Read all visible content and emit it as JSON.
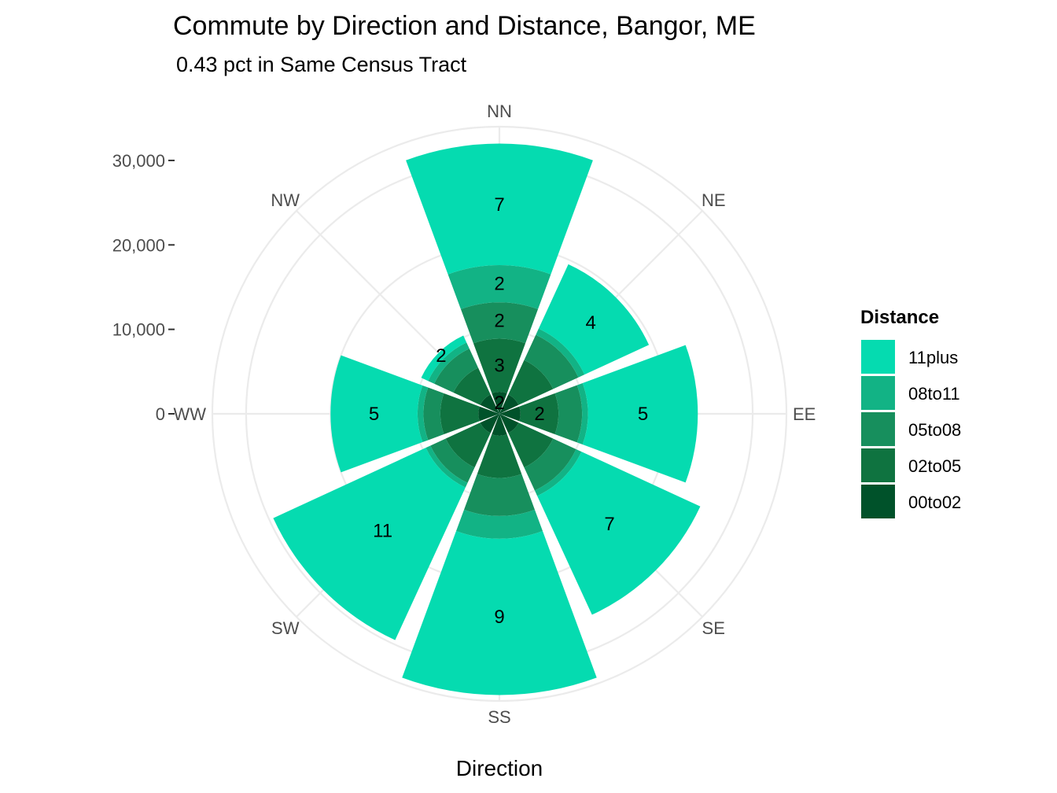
{
  "chart_data": {
    "type": "bar",
    "subtype": "polar-stacked-bar",
    "title": "Commute by Direction and Distance, Bangor, ME",
    "subtitle": "0.43 pct in Same Census Tract",
    "xlabel": "Direction",
    "categories": [
      "NN",
      "NE",
      "EE",
      "SE",
      "SS",
      "SW",
      "WW",
      "NW"
    ],
    "radial_ticks": [
      0,
      10000,
      20000,
      30000
    ],
    "radial_tick_labels": [
      "0",
      "10,000",
      "20,000",
      "30,000"
    ],
    "ylim": [
      0,
      34000
    ],
    "legend": {
      "title": "Distance",
      "position": "right"
    },
    "series": [
      {
        "name": "00to02",
        "color": "#00522a",
        "values": [
          2600,
          2500,
          2500,
          2500,
          2600,
          2500,
          2500,
          2500
        ]
      },
      {
        "name": "02to05",
        "color": "#0f7340",
        "values": [
          6300,
          4500,
          4500,
          4500,
          5000,
          4500,
          4500,
          3500
        ]
      },
      {
        "name": "05to08",
        "color": "#178f5d",
        "values": [
          4300,
          3300,
          2800,
          3000,
          4500,
          2000,
          2000,
          2500
        ]
      },
      {
        "name": "08to11",
        "color": "#12b385",
        "values": [
          4400,
          800,
          700,
          700,
          2700,
          600,
          700,
          800
        ]
      },
      {
        "name": "11plus",
        "color": "#05dbb0",
        "values": [
          14400,
          8400,
          13000,
          15500,
          18500,
          19900,
          10300,
          900
        ]
      }
    ],
    "bar_labels": {
      "NN": [
        "2",
        "3",
        "2",
        "2",
        "7"
      ],
      "NE": [
        "",
        "",
        "",
        "",
        "4"
      ],
      "EE": [
        "",
        "2",
        "",
        "",
        "5"
      ],
      "SE": [
        "",
        "",
        "",
        "",
        "7"
      ],
      "SS": [
        "",
        "",
        "",
        "",
        "9"
      ],
      "SW": [
        "",
        "",
        "",
        "",
        "11"
      ],
      "WW": [
        "",
        "",
        "",
        "",
        "5"
      ],
      "NW": [
        "",
        "",
        "",
        "",
        "2"
      ]
    },
    "grid": true
  }
}
